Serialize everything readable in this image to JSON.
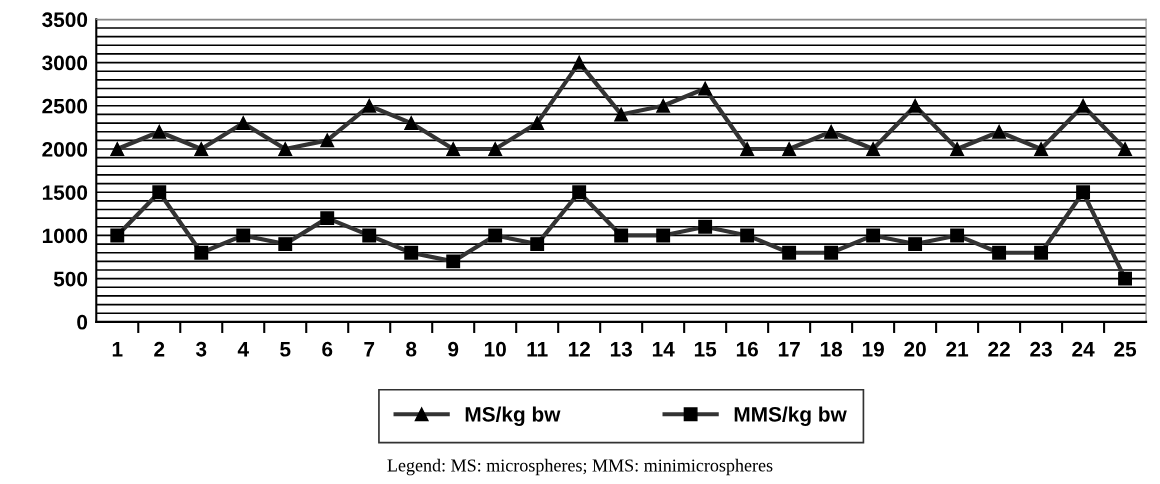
{
  "chart_data": {
    "type": "line",
    "categories": [
      "1",
      "2",
      "3",
      "4",
      "5",
      "6",
      "7",
      "8",
      "9",
      "10",
      "11",
      "12",
      "13",
      "14",
      "15",
      "16",
      "17",
      "18",
      "19",
      "20",
      "21",
      "22",
      "23",
      "24",
      "25"
    ],
    "series": [
      {
        "name": "MS/kg bw",
        "color": "#333333",
        "marker": "triangle",
        "values": [
          2000,
          2200,
          2000,
          2300,
          2000,
          2100,
          2500,
          2300,
          2000,
          2000,
          2300,
          3000,
          2400,
          2500,
          2700,
          2000,
          2000,
          2200,
          2000,
          2500,
          2000,
          2200,
          2000,
          2500,
          2000
        ]
      },
      {
        "name": "MMS/kg bw",
        "color": "#333333",
        "marker": "square",
        "values": [
          1000,
          1500,
          800,
          1000,
          900,
          1200,
          1000,
          800,
          700,
          1000,
          900,
          1500,
          1000,
          1000,
          1100,
          1000,
          800,
          800,
          1000,
          900,
          1000,
          800,
          800,
          1500,
          500
        ]
      }
    ],
    "ylim": [
      0,
      3500
    ],
    "yticks": [
      0,
      {
        "value": 100,
        "label": null
      },
      {
        "value": 200,
        "label": null
      },
      {
        "value": 300,
        "label": null
      },
      {
        "value": 400,
        "label": null
      },
      500,
      {
        "value": 600,
        "label": null
      },
      {
        "value": 700,
        "label": null
      },
      {
        "value": 800,
        "label": null
      },
      {
        "value": 900,
        "label": null
      },
      1000,
      {
        "value": 1100,
        "label": null
      },
      {
        "value": 1200,
        "label": null
      },
      {
        "value": 1300,
        "label": null
      },
      {
        "value": 1400,
        "label": null
      },
      1500,
      {
        "value": 1600,
        "label": null
      },
      {
        "value": 1700,
        "label": null
      },
      {
        "value": 1800,
        "label": null
      },
      {
        "value": 1900,
        "label": null
      },
      2000,
      {
        "value": 2100,
        "label": null
      },
      {
        "value": 2200,
        "label": null
      },
      {
        "value": 2300,
        "label": null
      },
      {
        "value": 2400,
        "label": null
      },
      2500,
      {
        "value": 2600,
        "label": null
      },
      {
        "value": 2700,
        "label": null
      },
      {
        "value": 2800,
        "label": null
      },
      {
        "value": 2900,
        "label": null
      },
      3000,
      {
        "value": 3100,
        "label": null
      },
      {
        "value": 3200,
        "label": null
      },
      {
        "value": 3300,
        "label": null
      },
      {
        "value": 3400,
        "label": null
      },
      3500
    ],
    "grid": "y",
    "legend": "bottom",
    "line_style": "solid",
    "annotations": [
      "Legend: MS: microspheres; MMS: minimicrospheres"
    ]
  }
}
